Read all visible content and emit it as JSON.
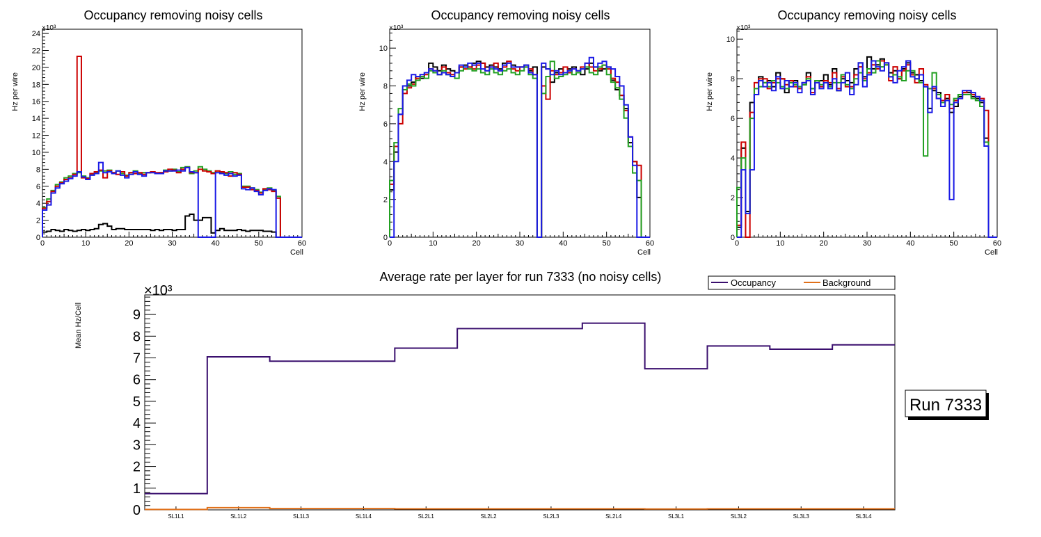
{
  "chart_data": [
    {
      "type": "step",
      "title": "Occupancy removing noisy cells",
      "xlabel": "Cell",
      "ylabel": "Hz per wire",
      "y_multiplier": "×10³",
      "xlim": [
        0,
        60
      ],
      "ylim": [
        0,
        24.5
      ],
      "xticks": [
        0,
        10,
        20,
        30,
        40,
        50,
        60
      ],
      "yticks": [
        0,
        2,
        4,
        6,
        8,
        10,
        12,
        14,
        16,
        18,
        20,
        22,
        24
      ],
      "series": [
        {
          "name": "black",
          "color": "#000000",
          "values": [
            0.6,
            0.7,
            0.9,
            0.8,
            0.7,
            0.9,
            0.8,
            0.7,
            0.8,
            0.9,
            0.8,
            0.9,
            1.0,
            1.5,
            1.6,
            1.3,
            0.9,
            1.0,
            1.0,
            0.9,
            0.9,
            0.9,
            0.9,
            0.9,
            0.9,
            0.8,
            0.9,
            0.8,
            0.9,
            0.9,
            0.8,
            0.9,
            0.9,
            2.5,
            2.7,
            2.0,
            2.0,
            2.3,
            2.3,
            0.5,
            0.8,
            1.0,
            0.8,
            0.8,
            0.8,
            0.9,
            0.8,
            0.7,
            0.8,
            0.8,
            0.8,
            0.7,
            0.7,
            0.6,
            0,
            0,
            0,
            0,
            0,
            0
          ]
        },
        {
          "name": "green",
          "color": "#22a022",
          "values": [
            3.5,
            4.5,
            5.5,
            6.2,
            6.5,
            7.0,
            7.2,
            7.5,
            7.6,
            7.2,
            7.0,
            7.4,
            7.6,
            7.8,
            7.8,
            7.9,
            7.6,
            7.8,
            7.5,
            7.3,
            7.6,
            7.8,
            7.5,
            7.6,
            7.6,
            7.7,
            7.5,
            7.6,
            7.9,
            7.8,
            8.0,
            7.7,
            8.2,
            8.3,
            7.5,
            7.8,
            8.3,
            8.0,
            7.8,
            7.6,
            7.8,
            7.6,
            7.5,
            7.7,
            7.4,
            7.5,
            6.0,
            6.0,
            5.8,
            5.6,
            5.3,
            5.6,
            5.8,
            5.5,
            4.8,
            0,
            0,
            0,
            0,
            0
          ]
        },
        {
          "name": "red",
          "color": "#cc0000",
          "values": [
            3.4,
            4.2,
            5.4,
            6.0,
            6.4,
            6.8,
            7.0,
            7.4,
            21.3,
            7.0,
            6.9,
            7.5,
            7.7,
            7.9,
            7.0,
            7.8,
            7.6,
            7.4,
            7.7,
            7.2,
            7.6,
            7.5,
            7.6,
            7.4,
            7.6,
            7.7,
            7.6,
            7.6,
            7.7,
            8.0,
            7.9,
            7.6,
            8.0,
            8.2,
            7.6,
            7.6,
            8.0,
            7.8,
            7.7,
            7.5,
            7.8,
            7.7,
            7.6,
            7.2,
            7.6,
            7.4,
            5.9,
            5.9,
            5.6,
            5.5,
            5.2,
            5.7,
            5.6,
            5.4,
            4.6,
            0,
            0,
            0,
            0,
            0
          ]
        },
        {
          "name": "blue",
          "color": "#1a1ae6",
          "values": [
            3.2,
            3.8,
            5.2,
            5.8,
            6.3,
            6.6,
            6.9,
            7.2,
            7.7,
            7.1,
            6.8,
            7.3,
            7.5,
            8.8,
            7.6,
            7.7,
            7.5,
            7.8,
            7.3,
            7.0,
            7.4,
            7.7,
            7.4,
            7.2,
            7.6,
            7.6,
            7.5,
            7.5,
            7.8,
            7.8,
            7.8,
            7.9,
            7.8,
            8.2,
            7.7,
            7.6,
            0,
            0,
            0,
            0,
            7.6,
            7.5,
            7.3,
            7.5,
            7.2,
            7.3,
            5.7,
            5.6,
            5.8,
            5.4,
            5.0,
            5.5,
            5.7,
            5.6,
            0,
            0,
            0,
            0,
            0,
            0
          ]
        }
      ]
    },
    {
      "type": "step",
      "title": "Occupancy removing noisy cells",
      "xlabel": "Cell",
      "ylabel": "Hz per wire",
      "y_multiplier": "×10³",
      "xlim": [
        0,
        60
      ],
      "ylim": [
        0,
        11
      ],
      "xticks": [
        0,
        10,
        20,
        30,
        40,
        50,
        60
      ],
      "yticks": [
        0,
        2,
        4,
        6,
        8,
        10
      ],
      "series": [
        {
          "name": "black",
          "color": "#000000",
          "values": [
            2.5,
            4.5,
            6.5,
            7.8,
            8.0,
            8.2,
            8.5,
            8.4,
            8.7,
            9.2,
            9.0,
            8.8,
            9.1,
            8.9,
            8.8,
            8.7,
            9.0,
            9.1,
            9.0,
            9.2,
            9.3,
            9.2,
            9.0,
            9.1,
            9.0,
            8.9,
            9.2,
            9.3,
            9.1,
            9.0,
            9.0,
            9.1,
            8.8,
            9.0,
            0,
            9.0,
            8.9,
            8.2,
            8.7,
            8.9,
            8.7,
            8.9,
            9.0,
            8.8,
            8.6,
            8.9,
            9.2,
            9.0,
            8.8,
            8.9,
            9.0,
            8.3,
            7.8,
            7.5,
            6.8,
            5.0,
            4.0,
            2.1,
            0,
            0
          ]
        },
        {
          "name": "red",
          "color": "#cc0000",
          "values": [
            2.8,
            4.8,
            6.0,
            7.6,
            7.9,
            8.1,
            8.4,
            8.5,
            8.6,
            8.9,
            8.8,
            8.6,
            9.0,
            8.7,
            8.6,
            8.7,
            9.0,
            8.9,
            9.0,
            8.9,
            9.1,
            9.2,
            8.8,
            9.0,
            9.2,
            8.8,
            9.0,
            9.3,
            8.9,
            8.8,
            9.0,
            9.0,
            8.9,
            8.6,
            0,
            8.0,
            7.3,
            8.8,
            8.6,
            8.7,
            9.0,
            8.7,
            8.9,
            8.8,
            9.0,
            9.2,
            9.0,
            8.8,
            8.9,
            9.1,
            8.9,
            8.4,
            8.2,
            7.5,
            6.7,
            5.3,
            4.0,
            3.8,
            0,
            0
          ]
        },
        {
          "name": "green",
          "color": "#22a022",
          "values": [
            3.0,
            5.0,
            6.8,
            7.8,
            8.1,
            8.0,
            8.3,
            8.5,
            8.4,
            8.8,
            8.7,
            8.6,
            8.8,
            8.6,
            8.5,
            8.4,
            8.8,
            9.0,
            8.9,
            8.8,
            8.9,
            8.7,
            8.6,
            8.9,
            8.7,
            8.6,
            8.8,
            8.9,
            8.7,
            8.6,
            8.8,
            9.0,
            8.6,
            8.4,
            0,
            7.6,
            8.5,
            9.3,
            8.4,
            8.5,
            8.6,
            8.8,
            8.6,
            8.7,
            8.9,
            9.0,
            8.7,
            8.6,
            9.0,
            9.1,
            8.6,
            8.2,
            7.9,
            7.3,
            6.3,
            4.8,
            3.4,
            3.0,
            0,
            0
          ]
        },
        {
          "name": "blue",
          "color": "#1a1ae6",
          "values": [
            0,
            4.0,
            6.5,
            8.0,
            8.3,
            8.6,
            8.5,
            8.6,
            8.7,
            8.9,
            8.8,
            8.6,
            8.7,
            8.6,
            8.5,
            8.7,
            9.1,
            9.0,
            9.2,
            9.1,
            9.2,
            8.9,
            8.8,
            9.0,
            8.9,
            8.8,
            9.1,
            9.2,
            9.0,
            9.0,
            9.0,
            9.1,
            8.7,
            8.6,
            0,
            9.2,
            8.9,
            8.6,
            8.8,
            8.6,
            8.7,
            8.8,
            8.9,
            8.8,
            8.9,
            9.2,
            9.5,
            9.0,
            9.2,
            9.3,
            9.0,
            8.9,
            8.5,
            8.0,
            7.0,
            5.3,
            3.8,
            0,
            0,
            0
          ]
        }
      ]
    },
    {
      "type": "step",
      "title": "Occupancy removing noisy cells",
      "xlabel": "Cell",
      "ylabel": "Hz per wire",
      "y_multiplier": "×10³",
      "xlim": [
        0,
        60
      ],
      "ylim": [
        0,
        10.5
      ],
      "xticks": [
        0,
        10,
        20,
        30,
        40,
        50,
        60
      ],
      "yticks": [
        0,
        2,
        4,
        6,
        8,
        10
      ],
      "series": [
        {
          "name": "black",
          "color": "#000000",
          "values": [
            0.5,
            4.5,
            1.3,
            6.8,
            7.2,
            8.1,
            7.8,
            7.9,
            7.6,
            8.3,
            8.0,
            7.3,
            7.8,
            7.9,
            7.6,
            7.7,
            8.3,
            7.5,
            7.8,
            7.9,
            8.2,
            7.7,
            8.5,
            7.4,
            8.0,
            7.9,
            7.8,
            8.5,
            8.8,
            8.1,
            9.1,
            8.5,
            8.7,
            9.0,
            8.8,
            8.3,
            8.4,
            8.0,
            8.5,
            8.8,
            8.3,
            8.2,
            7.9,
            7.6,
            6.5,
            7.4,
            7.3,
            6.9,
            7.0,
            6.3,
            6.6,
            7.1,
            7.3,
            7.3,
            7.1,
            7.0,
            6.8,
            5.0,
            0,
            0
          ]
        },
        {
          "name": "red",
          "color": "#cc0000",
          "values": [
            0.6,
            4.8,
            0,
            6.3,
            7.8,
            8.0,
            8.0,
            7.5,
            7.8,
            8.0,
            8.0,
            7.7,
            7.9,
            7.6,
            7.5,
            7.8,
            8.1,
            7.3,
            7.9,
            7.6,
            7.9,
            7.8,
            8.3,
            7.5,
            8.1,
            7.6,
            7.6,
            8.2,
            8.6,
            8.0,
            8.3,
            8.7,
            8.5,
            8.9,
            8.7,
            7.9,
            8.6,
            8.0,
            8.4,
            8.7,
            8.2,
            7.8,
            8.5,
            7.7,
            7.5,
            7.5,
            7.0,
            6.9,
            7.2,
            6.5,
            6.9,
            7.0,
            7.3,
            7.4,
            7.2,
            7.1,
            7.0,
            6.4,
            0,
            0
          ]
        },
        {
          "name": "green",
          "color": "#22a022",
          "values": [
            2.5,
            4.0,
            1.2,
            6.0,
            7.5,
            7.6,
            7.8,
            7.6,
            7.9,
            7.8,
            7.6,
            7.5,
            7.8,
            7.7,
            7.6,
            7.7,
            8.0,
            7.5,
            7.9,
            7.7,
            7.8,
            7.6,
            7.8,
            7.8,
            8.2,
            7.7,
            7.5,
            8.0,
            8.3,
            7.9,
            8.5,
            8.3,
            8.9,
            8.6,
            8.7,
            8.1,
            8.2,
            8.1,
            7.9,
            8.4,
            8.4,
            8.0,
            7.8,
            4.1,
            7.5,
            8.3,
            7.2,
            6.8,
            6.9,
            6.7,
            7.0,
            7.2,
            7.2,
            7.2,
            7.0,
            6.9,
            6.6,
            4.8,
            0,
            0
          ]
        },
        {
          "name": "blue",
          "color": "#1a1ae6",
          "values": [
            0,
            3.4,
            1.2,
            3.4,
            7.2,
            7.9,
            7.6,
            7.8,
            7.4,
            8.1,
            7.5,
            7.9,
            7.6,
            7.8,
            7.3,
            7.8,
            7.9,
            7.2,
            7.8,
            7.5,
            7.8,
            7.5,
            8.0,
            7.4,
            7.8,
            8.3,
            7.2,
            7.7,
            8.8,
            7.6,
            8.2,
            8.9,
            8.6,
            8.4,
            8.8,
            8.1,
            7.8,
            8.4,
            8.6,
            8.9,
            8.1,
            8.0,
            8.2,
            7.6,
            6.3,
            7.6,
            7.0,
            6.6,
            6.9,
            1.9,
            6.8,
            7.0,
            7.4,
            7.4,
            7.3,
            7.1,
            6.9,
            4.6,
            0,
            0
          ]
        }
      ]
    },
    {
      "type": "step",
      "title": "Average rate per layer for run 7333 (no noisy cells)",
      "ylabel": "Mean Hz/Cell",
      "y_multiplier": "×10³",
      "ylim": [
        0,
        9.9
      ],
      "yticks": [
        0,
        1,
        2,
        3,
        4,
        5,
        6,
        7,
        8,
        9
      ],
      "categories": [
        "SL1L1",
        "SL1L2",
        "SL1L3",
        "SL1L4",
        "SL2L1",
        "SL2L2",
        "SL2L3",
        "SL2L4",
        "SL3L1",
        "SL3L2",
        "SL3L3",
        "SL3L4"
      ],
      "series": [
        {
          "name": "Occupancy",
          "color": "#3a0f6e",
          "values": [
            0.75,
            7.05,
            6.85,
            6.85,
            7.45,
            8.35,
            8.35,
            8.6,
            6.5,
            7.55,
            7.4,
            7.6
          ]
        },
        {
          "name": "Background",
          "color": "#e0701a",
          "values": [
            0.02,
            0.1,
            0.06,
            0.06,
            0.05,
            0.05,
            0.05,
            0.05,
            0.04,
            0.05,
            0.05,
            0.05
          ]
        }
      ],
      "legend": [
        "Occupancy",
        "Background"
      ],
      "annotation": "Run 7333"
    }
  ]
}
